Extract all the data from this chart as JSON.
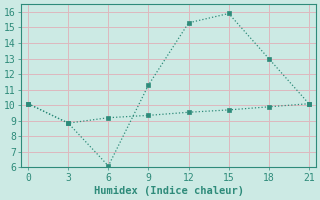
{
  "line1_x": [
    0,
    3,
    6,
    9,
    12,
    15,
    18,
    21
  ],
  "line1_y": [
    10.1,
    8.85,
    6.1,
    11.3,
    15.3,
    15.9,
    13.0,
    10.1
  ],
  "line2_x": [
    0,
    3,
    6,
    9,
    12,
    15,
    18,
    21
  ],
  "line2_y": [
    10.1,
    8.85,
    9.2,
    9.35,
    9.55,
    9.7,
    9.9,
    10.1
  ],
  "line_color": "#2e8b7a",
  "bg_color": "#cceae4",
  "grid_color": "#ddb8be",
  "xlabel": "Humidex (Indice chaleur)",
  "xlim": [
    -0.5,
    21.5
  ],
  "ylim": [
    6,
    16.5
  ],
  "xticks": [
    0,
    3,
    6,
    9,
    12,
    15,
    18,
    21
  ],
  "yticks": [
    6,
    7,
    8,
    9,
    10,
    11,
    12,
    13,
    14,
    15,
    16
  ],
  "xlabel_fontsize": 7.5,
  "tick_fontsize": 7
}
